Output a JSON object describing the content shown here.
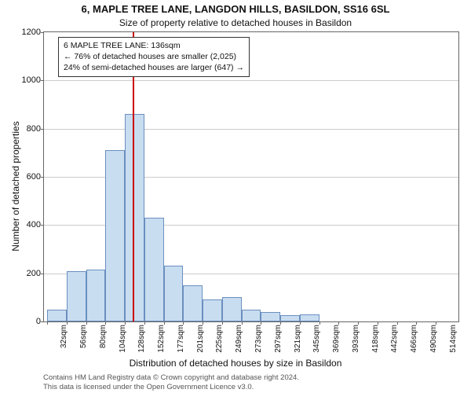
{
  "title_main": "6, MAPLE TREE LANE, LANGDON HILLS, BASILDON, SS16 6SL",
  "title_sub": "Size of property relative to detached houses in Basildon",
  "y_axis_label": "Number of detached properties",
  "x_axis_label": "Distribution of detached houses by size in Basildon",
  "footer_line1": "Contains HM Land Registry data © Crown copyright and database right 2024.",
  "footer_line2": "This data is licensed under the Open Government Licence v3.0.",
  "info_box": {
    "line1": "6 MAPLE TREE LANE: 136sqm",
    "line2": "← 76% of detached houses are smaller (2,025)",
    "line3": "24% of semi-detached houses are larger (647) →"
  },
  "chart": {
    "type": "histogram",
    "ylim": [
      0,
      1200
    ],
    "ytick_step": 200,
    "y_ticks": [
      0,
      200,
      400,
      600,
      800,
      1000,
      1200
    ],
    "bar_fill": "#c9ddf1",
    "bar_border": "#6a8fbf",
    "grid_color": "#cccccc",
    "axis_color": "#666666",
    "background_color": "#ffffff",
    "reference_line": {
      "x_category_index": 4.4,
      "color": "#cc0000",
      "width": 2
    },
    "categories": [
      "32sqm",
      "56sqm",
      "80sqm",
      "104sqm",
      "128sqm",
      "152sqm",
      "177sqm",
      "201sqm",
      "225sqm",
      "249sqm",
      "273sqm",
      "297sqm",
      "321sqm",
      "345sqm",
      "369sqm",
      "393sqm",
      "418sqm",
      "442sqm",
      "466sqm",
      "490sqm",
      "514sqm"
    ],
    "values": [
      50,
      210,
      215,
      710,
      860,
      430,
      230,
      150,
      90,
      100,
      50,
      40,
      25,
      30,
      0,
      0,
      0,
      0,
      0,
      0,
      0
    ],
    "bar_width_ratio": 1.0,
    "title_fontsize": 13,
    "subtitle_fontsize": 12,
    "axis_label_fontsize": 12,
    "tick_fontsize": 11,
    "x_tick_fontsize": 10,
    "info_box_fontsize": 10.5
  }
}
